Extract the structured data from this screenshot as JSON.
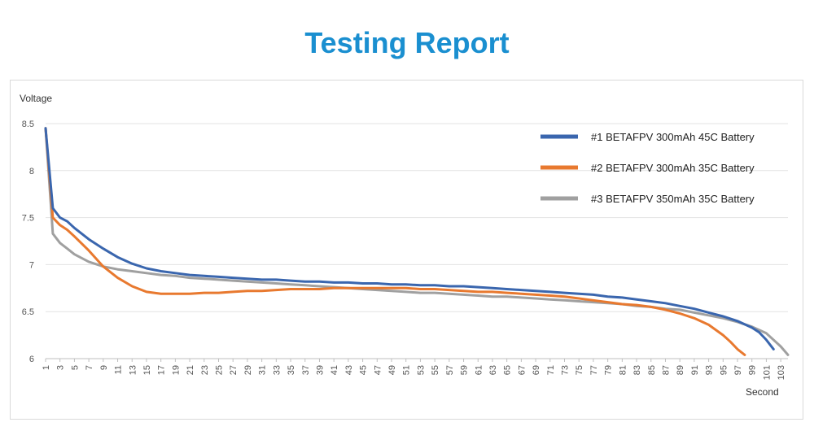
{
  "title": "Testing Report",
  "chart_data": {
    "type": "line",
    "title": "Testing Report",
    "xlabel": "Second",
    "ylabel": "Voltage",
    "ylim": [
      6,
      8.5
    ],
    "yticks": [
      "6",
      "6.5",
      "7",
      "7.5",
      "8",
      "8.5"
    ],
    "xlim": [
      1,
      104
    ],
    "xtick_labels": [
      "1",
      "3",
      "5",
      "7",
      "9",
      "11",
      "13",
      "15",
      "17",
      "19",
      "21",
      "23",
      "25",
      "27",
      "29",
      "31",
      "33",
      "35",
      "37",
      "39",
      "41",
      "43",
      "45",
      "47",
      "49",
      "51",
      "53",
      "55",
      "57",
      "59",
      "61",
      "63",
      "65",
      "67",
      "69",
      "71",
      "73",
      "75",
      "77",
      "79",
      "81",
      "83",
      "85",
      "87",
      "89",
      "91",
      "93",
      "95",
      "97",
      "99",
      "101",
      "103"
    ],
    "grid": "horizontal",
    "legend_position": "top-right",
    "series": [
      {
        "name": "#1 BETAFPV 300mAh 45C Battery",
        "color": "#3a66ae",
        "x": [
          1,
          2,
          3,
          4,
          5,
          7,
          9,
          11,
          13,
          15,
          17,
          19,
          21,
          23,
          25,
          27,
          29,
          31,
          33,
          35,
          37,
          39,
          41,
          43,
          45,
          47,
          49,
          51,
          53,
          55,
          57,
          59,
          61,
          63,
          65,
          67,
          69,
          71,
          73,
          75,
          77,
          79,
          81,
          83,
          85,
          87,
          89,
          91,
          93,
          95,
          97,
          99,
          100,
          101,
          102
        ],
        "y": [
          8.45,
          7.6,
          7.5,
          7.46,
          7.39,
          7.27,
          7.17,
          7.08,
          7.01,
          6.96,
          6.93,
          6.91,
          6.89,
          6.88,
          6.87,
          6.86,
          6.85,
          6.84,
          6.84,
          6.83,
          6.82,
          6.82,
          6.81,
          6.81,
          6.8,
          6.8,
          6.79,
          6.79,
          6.78,
          6.78,
          6.77,
          6.77,
          6.76,
          6.75,
          6.74,
          6.73,
          6.72,
          6.71,
          6.7,
          6.69,
          6.68,
          6.66,
          6.65,
          6.63,
          6.61,
          6.59,
          6.56,
          6.53,
          6.49,
          6.45,
          6.4,
          6.33,
          6.28,
          6.2,
          6.1
        ]
      },
      {
        "name": "#2 BETAFPV 300mAh 35C Battery",
        "color": "#e8792f",
        "x": [
          1,
          2,
          3,
          4,
          5,
          7,
          9,
          11,
          13,
          15,
          17,
          19,
          21,
          23,
          25,
          27,
          29,
          31,
          33,
          35,
          37,
          39,
          41,
          43,
          45,
          47,
          49,
          51,
          53,
          55,
          57,
          59,
          61,
          63,
          65,
          67,
          69,
          71,
          73,
          75,
          77,
          79,
          81,
          83,
          85,
          87,
          89,
          91,
          93,
          95,
          96,
          97,
          98
        ],
        "y": [
          8.45,
          7.5,
          7.42,
          7.37,
          7.3,
          7.15,
          6.98,
          6.86,
          6.77,
          6.71,
          6.69,
          6.69,
          6.69,
          6.7,
          6.7,
          6.71,
          6.72,
          6.72,
          6.73,
          6.74,
          6.74,
          6.74,
          6.75,
          6.75,
          6.75,
          6.75,
          6.75,
          6.75,
          6.74,
          6.74,
          6.73,
          6.72,
          6.71,
          6.71,
          6.7,
          6.69,
          6.68,
          6.67,
          6.66,
          6.64,
          6.62,
          6.6,
          6.58,
          6.57,
          6.55,
          6.52,
          6.48,
          6.43,
          6.36,
          6.25,
          6.18,
          6.1,
          6.04
        ]
      },
      {
        "name": "#3 BETAFPV 350mAh 35C Battery",
        "color": "#a0a0a0",
        "x": [
          1,
          2,
          3,
          4,
          5,
          7,
          9,
          11,
          13,
          15,
          17,
          19,
          21,
          23,
          25,
          27,
          29,
          31,
          33,
          35,
          37,
          39,
          41,
          43,
          45,
          47,
          49,
          51,
          53,
          55,
          57,
          59,
          61,
          63,
          65,
          67,
          69,
          71,
          73,
          75,
          77,
          79,
          81,
          83,
          85,
          87,
          89,
          91,
          93,
          95,
          97,
          99,
          101,
          103,
          104
        ],
        "y": [
          8.45,
          7.33,
          7.23,
          7.17,
          7.11,
          7.03,
          6.98,
          6.95,
          6.93,
          6.91,
          6.89,
          6.88,
          6.86,
          6.85,
          6.84,
          6.83,
          6.82,
          6.81,
          6.8,
          6.79,
          6.78,
          6.77,
          6.76,
          6.75,
          6.74,
          6.73,
          6.72,
          6.71,
          6.7,
          6.7,
          6.69,
          6.68,
          6.67,
          6.66,
          6.66,
          6.65,
          6.64,
          6.63,
          6.62,
          6.61,
          6.6,
          6.59,
          6.58,
          6.56,
          6.55,
          6.53,
          6.52,
          6.49,
          6.46,
          6.43,
          6.39,
          6.34,
          6.27,
          6.13,
          6.04
        ]
      }
    ]
  }
}
